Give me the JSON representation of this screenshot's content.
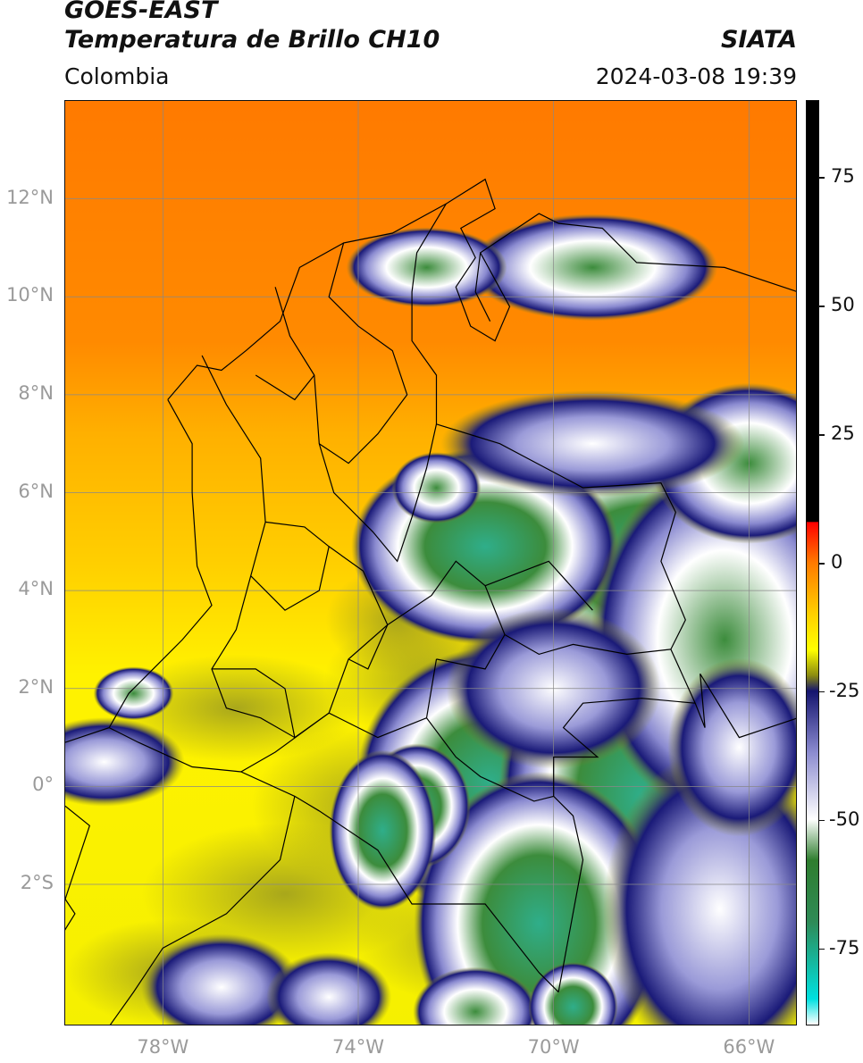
{
  "header": {
    "title_line1": "GOES-EAST",
    "title_line2": "Temperatura de Brillo CH10",
    "source": "SIATA",
    "region": "Colombia",
    "datetime": "2024-03-08 19:39"
  },
  "map": {
    "lat_ticks": [
      "12°N",
      "10°N",
      "8°N",
      "6°N",
      "4°N",
      "2°N",
      "0°",
      "2°S"
    ],
    "lon_ticks": [
      "78°W",
      "74°W",
      "70°W",
      "66°W"
    ],
    "lat_range": [
      -4.9,
      14.0
    ],
    "lon_range": [
      -80.0,
      -65.0
    ]
  },
  "colorbar": {
    "ticks": [
      "75",
      "50",
      "25",
      "0",
      "-25",
      "-50",
      "-75"
    ],
    "stops": [
      {
        "value": 90,
        "color": "#000000"
      },
      {
        "value": 8,
        "color": "#000000"
      },
      {
        "value": 7.9,
        "color": "#ff0000"
      },
      {
        "value": 0,
        "color": "#ff7a00"
      },
      {
        "value": -10,
        "color": "#ffd000"
      },
      {
        "value": -17,
        "color": "#ffff00"
      },
      {
        "value": -22,
        "color": "#8a8a10"
      },
      {
        "value": -25,
        "color": "#14146e"
      },
      {
        "value": -37,
        "color": "#8c8cd0"
      },
      {
        "value": -50,
        "color": "#ffffff"
      },
      {
        "value": -58,
        "color": "#2e7d2e"
      },
      {
        "value": -70,
        "color": "#2e8b57"
      },
      {
        "value": -85,
        "color": "#00e0e0"
      },
      {
        "value": -90,
        "color": "#ffffff"
      }
    ]
  }
}
